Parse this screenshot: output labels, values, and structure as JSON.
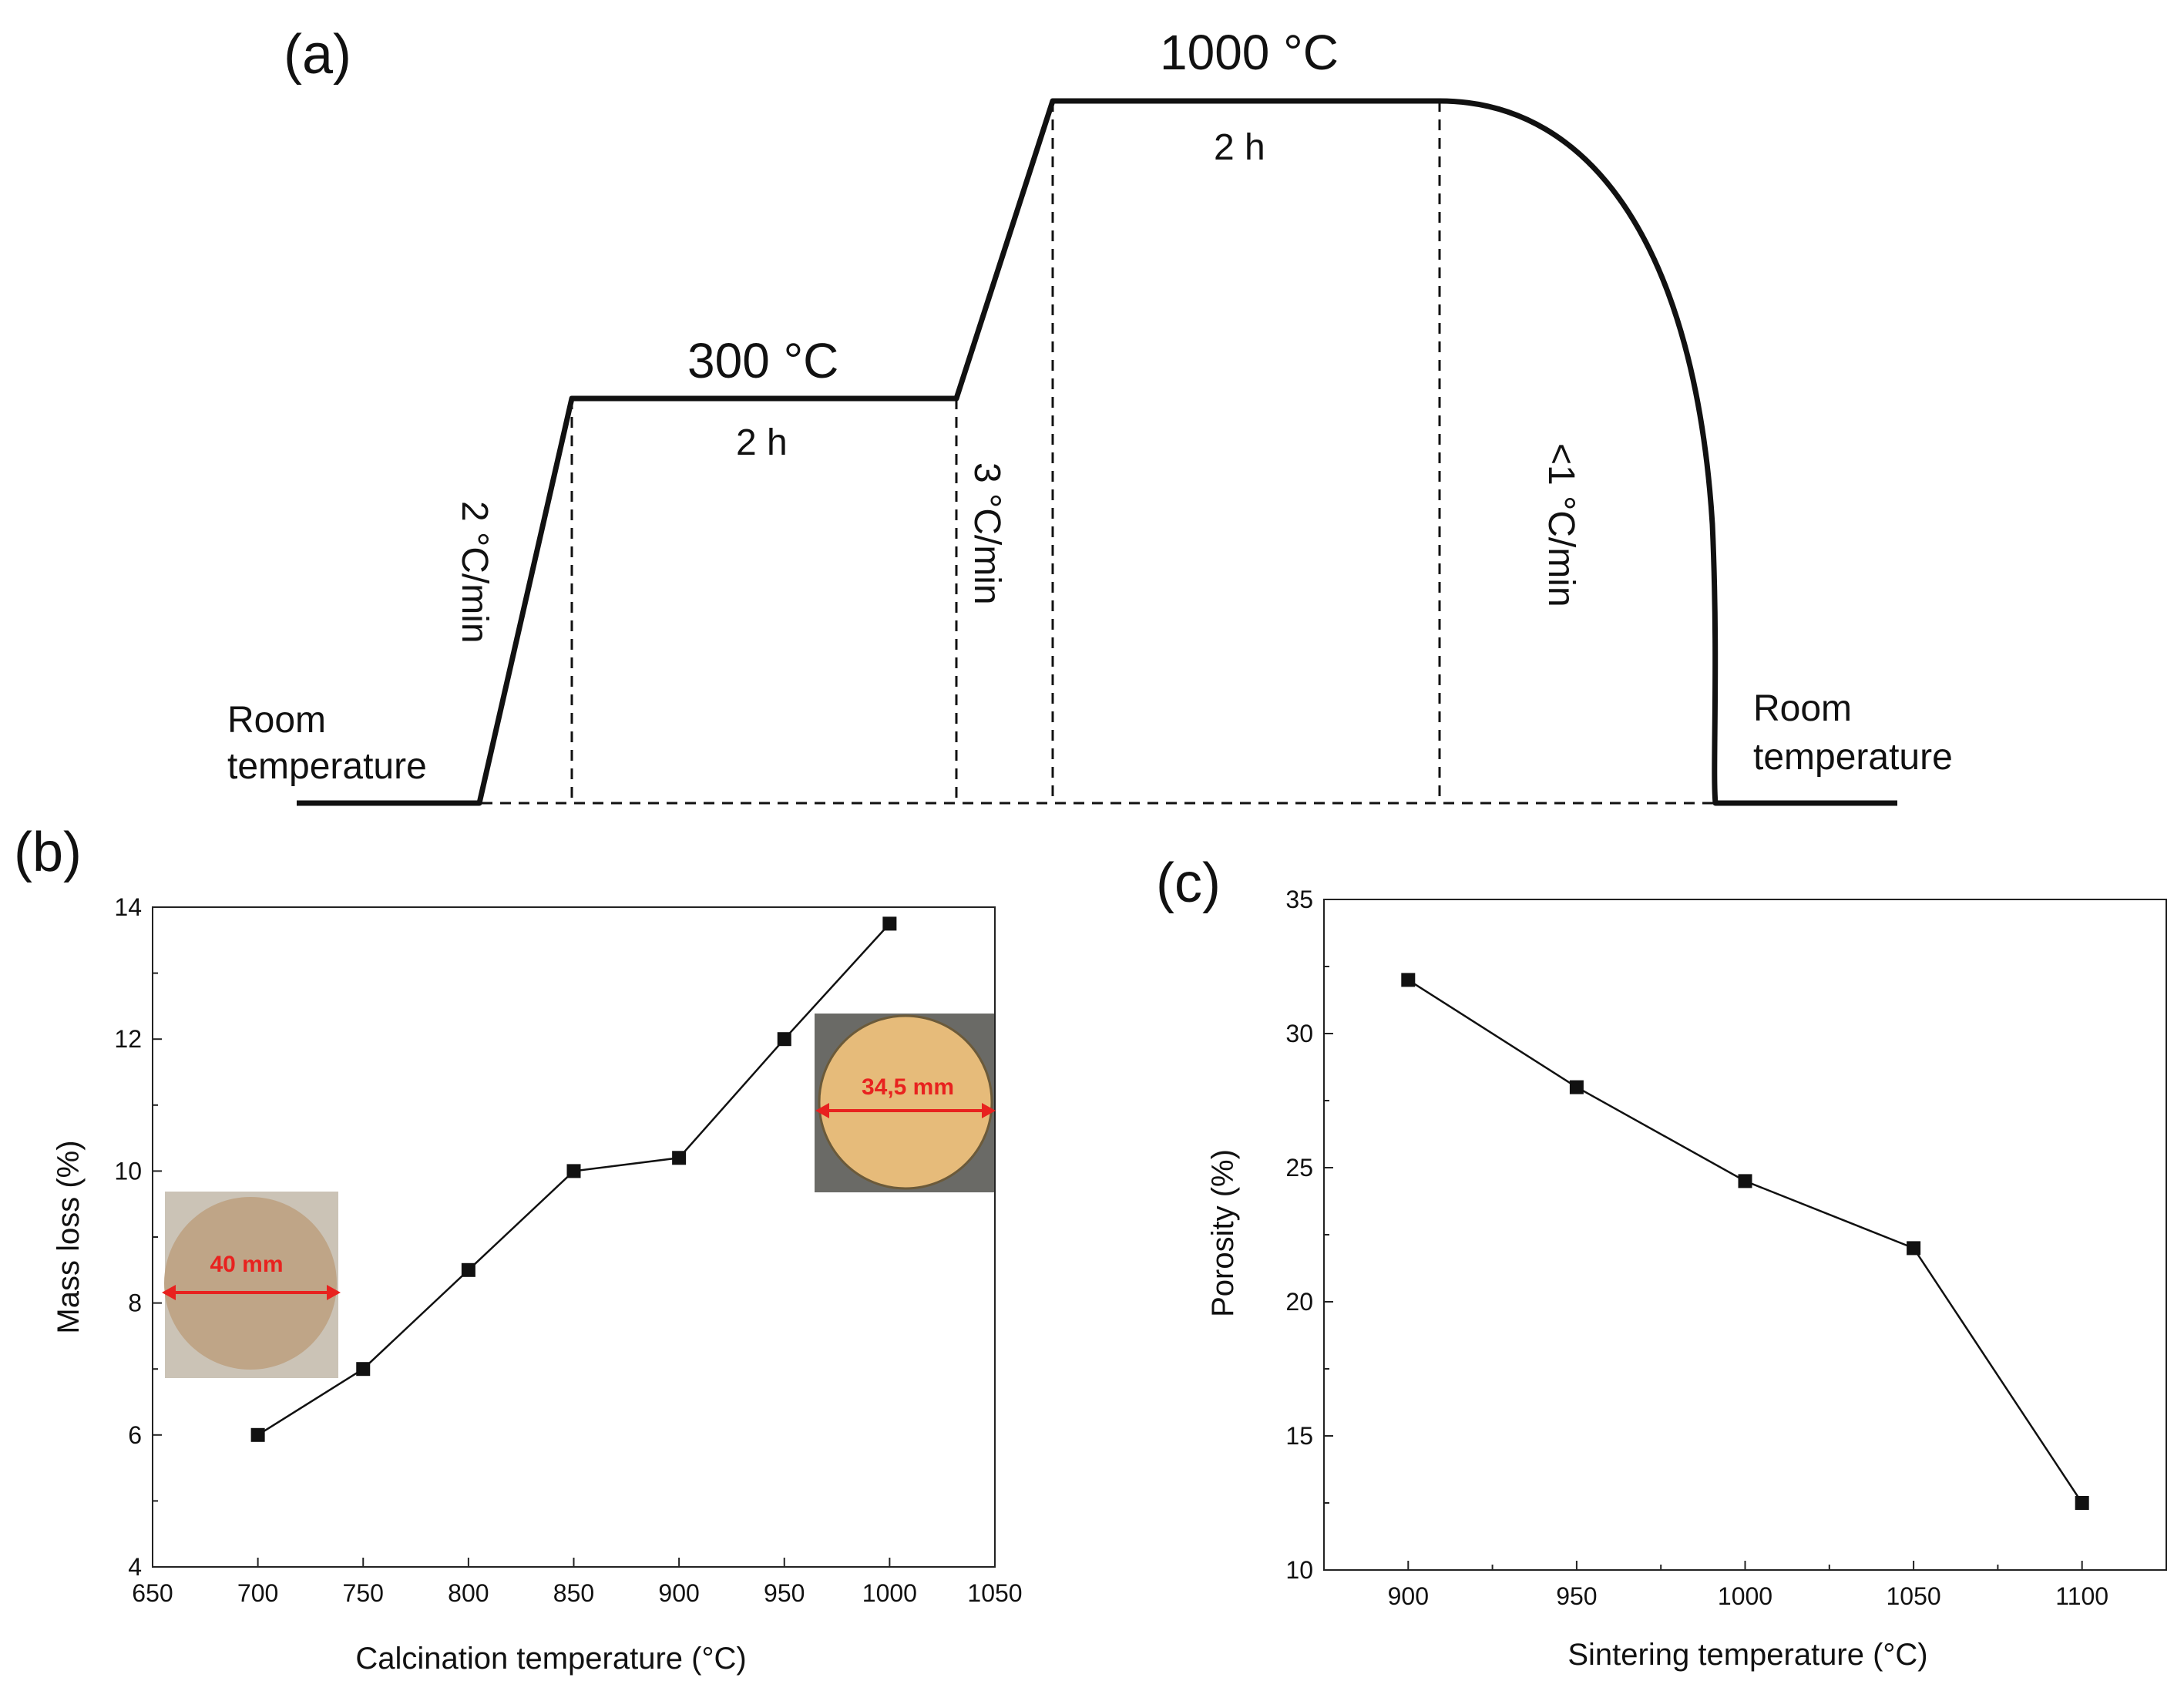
{
  "chart_data": [
    {
      "type": "line",
      "panel": "(a)",
      "title": "",
      "xlabel": "",
      "ylabel": "",
      "segments": [
        "Room temperature",
        "2 °C/min",
        "300 °C 2 h",
        "3 °C/min",
        "1000 °C 2 h",
        "<1 °C/min",
        "Room temperature"
      ],
      "labels": {
        "room_left_line1": "Room",
        "room_left_line2": "temperature",
        "ramp1": "2 °C/min",
        "hold1_temp": "300 °C",
        "hold1_time": "2 h",
        "ramp2": "3 °C/min",
        "hold2_temp": "1000 °C",
        "hold2_time": "2 h",
        "cool": "<1 °C/min",
        "room_right_line1": "Room",
        "room_right_line2": "temperature"
      }
    },
    {
      "type": "line",
      "panel": "(b)",
      "title": "",
      "xlabel": "Calcination temperature (°C)",
      "ylabel": "Mass loss (%)",
      "x": [
        700,
        750,
        800,
        850,
        900,
        950,
        1000
      ],
      "y": [
        6.0,
        7.0,
        8.5,
        10.0,
        10.2,
        12.0,
        13.75
      ],
      "xlim": [
        650,
        1050
      ],
      "ylim": [
        4,
        14
      ],
      "xticks": [
        650,
        700,
        750,
        800,
        850,
        900,
        950,
        1000,
        1050
      ],
      "yticks": [
        4,
        6,
        8,
        10,
        12,
        14
      ],
      "inset_labels": [
        "40 mm",
        "34,5 mm"
      ]
    },
    {
      "type": "line",
      "panel": "(c)",
      "title": "",
      "xlabel": "Sintering temperature (°C)",
      "ylabel": "Porosity (%)",
      "x": [
        900,
        950,
        1000,
        1050,
        1100
      ],
      "y": [
        32.0,
        28.0,
        24.5,
        22.0,
        12.5
      ],
      "xlim": [
        875,
        1125
      ],
      "ylim": [
        10,
        35
      ],
      "xticks": [
        900,
        950,
        1000,
        1050,
        1100
      ],
      "yticks": [
        10,
        15,
        20,
        25,
        30,
        35
      ]
    }
  ],
  "colors": {
    "ink": "#111111",
    "dimension_arrow": "#e8221f",
    "sample_green_body": "#bfa587",
    "sample_sintered": "#e6bb7a",
    "photo_bg_left": "#c9c1b5",
    "photo_bg_right": "#6a6a66"
  }
}
